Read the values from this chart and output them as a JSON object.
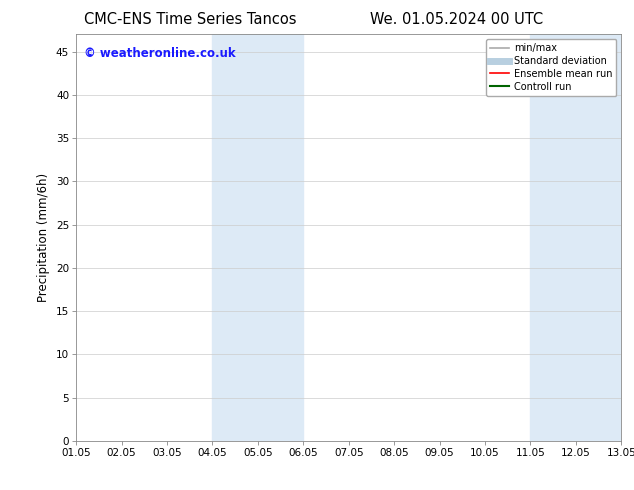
{
  "title_left": "CMC-ENS Time Series Tancos",
  "title_right": "We. 01.05.2024 00 UTC",
  "ylabel": "Precipitation (mm/6h)",
  "watermark": "© weatheronline.co.uk",
  "xlim": [
    0,
    12
  ],
  "ylim": [
    0,
    47
  ],
  "yticks": [
    0,
    5,
    10,
    15,
    20,
    25,
    30,
    35,
    40,
    45
  ],
  "xtick_labels": [
    "01.05",
    "02.05",
    "03.05",
    "04.05",
    "05.05",
    "06.05",
    "07.05",
    "08.05",
    "09.05",
    "10.05",
    "11.05",
    "12.05",
    "13.05"
  ],
  "shaded_regions": [
    {
      "xmin": 3,
      "xmax": 5,
      "color": "#ddeaf6"
    },
    {
      "xmin": 10,
      "xmax": 12,
      "color": "#ddeaf6"
    }
  ],
  "legend_entries": [
    {
      "label": "min/max",
      "color": "#aaaaaa",
      "lw": 1.2,
      "style": "solid"
    },
    {
      "label": "Standard deviation",
      "color": "#b8cfe0",
      "lw": 5,
      "style": "solid"
    },
    {
      "label": "Ensemble mean run",
      "color": "#ff0000",
      "lw": 1.2,
      "style": "solid"
    },
    {
      "label": "Controll run",
      "color": "#006400",
      "lw": 1.5,
      "style": "solid"
    }
  ],
  "background_color": "#ffffff",
  "plot_bg_color": "#ffffff",
  "title_fontsize": 10.5,
  "label_fontsize": 8.5,
  "tick_fontsize": 7.5,
  "watermark_color": "#1a1aff",
  "watermark_fontsize": 8.5
}
